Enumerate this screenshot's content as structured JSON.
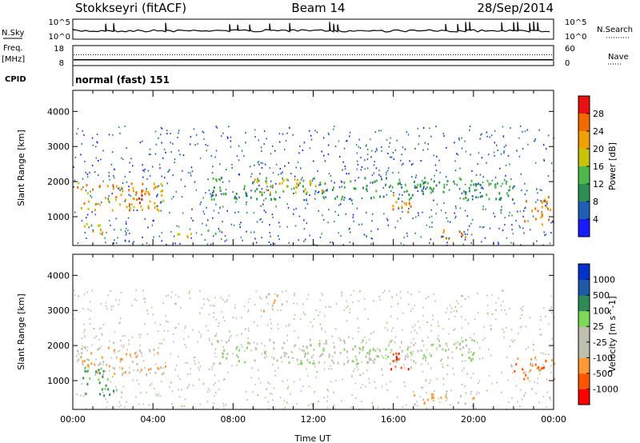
{
  "header": {
    "station": "Stokkseyri (fitACF)",
    "beam": "Beam 14",
    "date": "28/Sep/2014"
  },
  "strip_labels": {
    "nsky": "N.Sky",
    "nsearch": "N.Search",
    "freq": "Freq.",
    "freq_unit": "[MHz]",
    "nave": "Nave",
    "cpid": "CPID",
    "cpid_value": "normal (fast) 151"
  },
  "colors": {
    "power_scale": [
      "#1a1aff",
      "#1f5fb5",
      "#2e8f55",
      "#4fb84a",
      "#c9c20a",
      "#f0a000",
      "#f06a00",
      "#e81010"
    ],
    "velocity_scale": [
      "#ff0000",
      "#ff5500",
      "#ff9933",
      "#bfbfb0",
      "#bfbfb0",
      "#7ed957",
      "#2e8b57",
      "#1f5aa8",
      "#0033cc"
    ]
  },
  "chart_data": [
    {
      "type": "line",
      "title": "N.Sky / N.Search",
      "y_tick_labels": [
        "10^5",
        "10^0"
      ],
      "right_tick_labels": [
        "10^5",
        "10^0"
      ]
    },
    {
      "type": "line",
      "title": "Freq. / Nave",
      "ylabel": "[MHz]",
      "y_ticks": [
        18,
        8
      ],
      "right_ticks": [
        60,
        0
      ],
      "freq_value": 12,
      "nave_value": 25
    },
    {
      "type": "heatmap",
      "ylabel": "Slant Range [km]",
      "ylim": [
        180,
        4600
      ],
      "y_ticks": [
        1000,
        2000,
        3000,
        4000
      ],
      "xlim": [
        0,
        24
      ],
      "colorbar": {
        "label": "Power [dB]",
        "ticks": [
          4,
          8,
          12,
          16,
          20,
          24,
          28
        ],
        "range": [
          0,
          32
        ]
      },
      "features": [
        {
          "t0": 0.2,
          "t1": 4.6,
          "r0": 1200,
          "r1": 2000,
          "value": 22
        },
        {
          "t0": 2.6,
          "t1": 3.6,
          "r0": 1200,
          "r1": 1900,
          "value": 26
        },
        {
          "t0": 6.8,
          "t1": 22.0,
          "r0": 1500,
          "r1": 2150,
          "value": 12
        },
        {
          "t0": 9.0,
          "t1": 13.0,
          "r0": 1700,
          "r1": 2100,
          "value": 20
        },
        {
          "t0": 15.8,
          "t1": 17.0,
          "r0": 1100,
          "r1": 1700,
          "value": 24
        },
        {
          "t0": 17.6,
          "t1": 19.6,
          "r0": 400,
          "r1": 650,
          "value": 24
        },
        {
          "t0": 22.5,
          "t1": 24.0,
          "r0": 800,
          "r1": 1600,
          "value": 24
        },
        {
          "t0": 0.2,
          "t1": 1.5,
          "r0": 500,
          "r1": 900,
          "value": 18
        },
        {
          "t0": 5.2,
          "t1": 7.4,
          "r0": 450,
          "r1": 650,
          "value": 18
        }
      ]
    },
    {
      "type": "heatmap",
      "ylabel": "Slant Range [km]",
      "xlabel": "Time UT",
      "ylim": [
        180,
        4600
      ],
      "y_ticks": [
        1000,
        2000,
        3000,
        4000
      ],
      "xlim": [
        0,
        24
      ],
      "x_tick_labels": [
        "00:00",
        "04:00",
        "08:00",
        "12:00",
        "16:00",
        "20:00",
        "00:00"
      ],
      "colorbar": {
        "label": "Velocity [m s^-1]",
        "ticks": [
          1000,
          500,
          100,
          25,
          -25,
          -100,
          -500,
          -1000
        ]
      },
      "features": [
        {
          "t0": 0.2,
          "t1": 4.6,
          "r0": 1200,
          "r1": 2000,
          "value": -100
        },
        {
          "t0": 0.4,
          "t1": 2.2,
          "r0": 600,
          "r1": 1400,
          "value": 100
        },
        {
          "t0": 7.0,
          "t1": 20.0,
          "r0": 1500,
          "r1": 2200,
          "value": 0
        },
        {
          "t0": 15.8,
          "t1": 16.8,
          "r0": 1300,
          "r1": 1900,
          "value": -1000
        },
        {
          "t0": 17.0,
          "t1": 20.0,
          "r0": 350,
          "r1": 700,
          "value": -100
        },
        {
          "t0": 22.0,
          "t1": 24.0,
          "r0": 1000,
          "r1": 1700,
          "value": -500
        },
        {
          "t0": 9.5,
          "t1": 10.5,
          "r0": 3000,
          "r1": 3500,
          "value": -100
        }
      ]
    }
  ]
}
